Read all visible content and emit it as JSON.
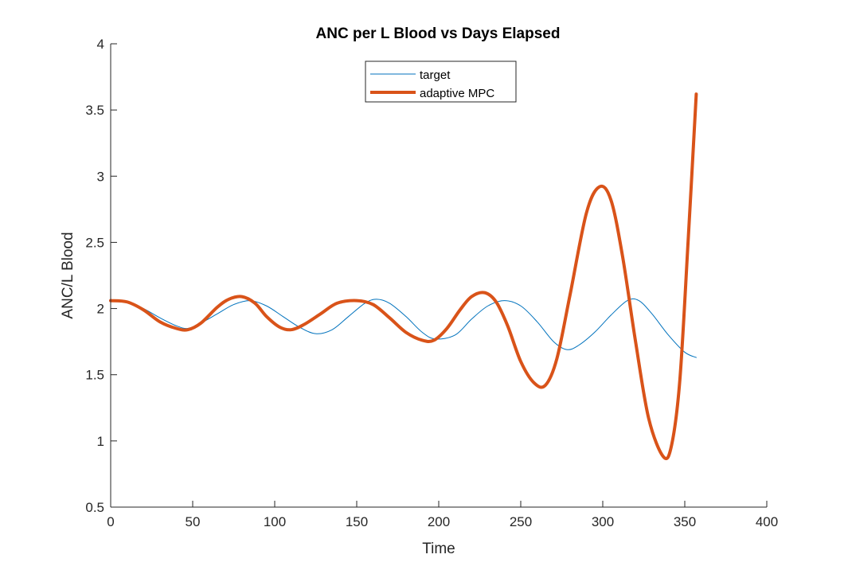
{
  "chart_data": {
    "type": "line",
    "title": "ANC per L Blood vs Days Elapsed",
    "xlabel": "Time",
    "ylabel": "ANC/L Blood",
    "xlim": [
      0,
      400
    ],
    "ylim": [
      0.5,
      4
    ],
    "xticks": [
      0,
      50,
      100,
      150,
      200,
      250,
      300,
      350,
      400
    ],
    "yticks": [
      0.5,
      1,
      1.5,
      2,
      2.5,
      3,
      3.5,
      4
    ],
    "xtick_labels": [
      "0",
      "50",
      "100",
      "150",
      "200",
      "250",
      "300",
      "350",
      "400"
    ],
    "ytick_labels": [
      "0.5",
      "1",
      "1.5",
      "2",
      "2.5",
      "3",
      "3.5",
      "4"
    ],
    "grid": false,
    "legend_position": "top-center",
    "series": [
      {
        "name": "target",
        "color": "#0072BD",
        "style": "thin",
        "x": [
          0,
          10,
          20,
          30,
          40,
          47,
          55,
          65,
          75,
          85,
          95,
          105,
          115,
          125,
          135,
          145,
          155,
          162,
          170,
          180,
          190,
          198,
          210,
          220,
          230,
          240,
          250,
          260,
          270,
          278,
          285,
          295,
          305,
          315,
          322,
          330,
          340,
          350,
          357
        ],
        "y": [
          2.06,
          2.05,
          2.0,
          1.93,
          1.87,
          1.85,
          1.89,
          1.96,
          2.03,
          2.06,
          2.02,
          1.94,
          1.86,
          1.81,
          1.84,
          1.94,
          2.04,
          2.07,
          2.04,
          1.94,
          1.82,
          1.77,
          1.8,
          1.92,
          2.02,
          2.06,
          2.02,
          1.9,
          1.75,
          1.69,
          1.72,
          1.82,
          1.95,
          2.06,
          2.06,
          1.96,
          1.8,
          1.67,
          1.63
        ]
      },
      {
        "name": "adaptive MPC",
        "color": "#D95319",
        "style": "thick",
        "x": [
          0,
          10,
          20,
          30,
          40,
          47,
          55,
          65,
          72,
          80,
          88,
          95,
          103,
          110,
          118,
          128,
          138,
          150,
          160,
          170,
          180,
          190,
          197,
          205,
          213,
          220,
          228,
          235,
          242,
          250,
          258,
          265,
          272,
          280,
          290,
          298,
          305,
          312,
          320,
          328,
          337,
          342,
          347,
          352,
          357
        ],
        "y": [
          2.06,
          2.05,
          1.99,
          1.9,
          1.85,
          1.84,
          1.89,
          2.01,
          2.07,
          2.09,
          2.04,
          1.94,
          1.86,
          1.84,
          1.88,
          1.96,
          2.04,
          2.06,
          2.03,
          1.93,
          1.82,
          1.76,
          1.76,
          1.85,
          1.99,
          2.09,
          2.12,
          2.05,
          1.87,
          1.6,
          1.44,
          1.42,
          1.62,
          2.1,
          2.72,
          2.92,
          2.82,
          2.4,
          1.75,
          1.17,
          0.88,
          0.97,
          1.46,
          2.5,
          3.62
        ]
      }
    ]
  }
}
